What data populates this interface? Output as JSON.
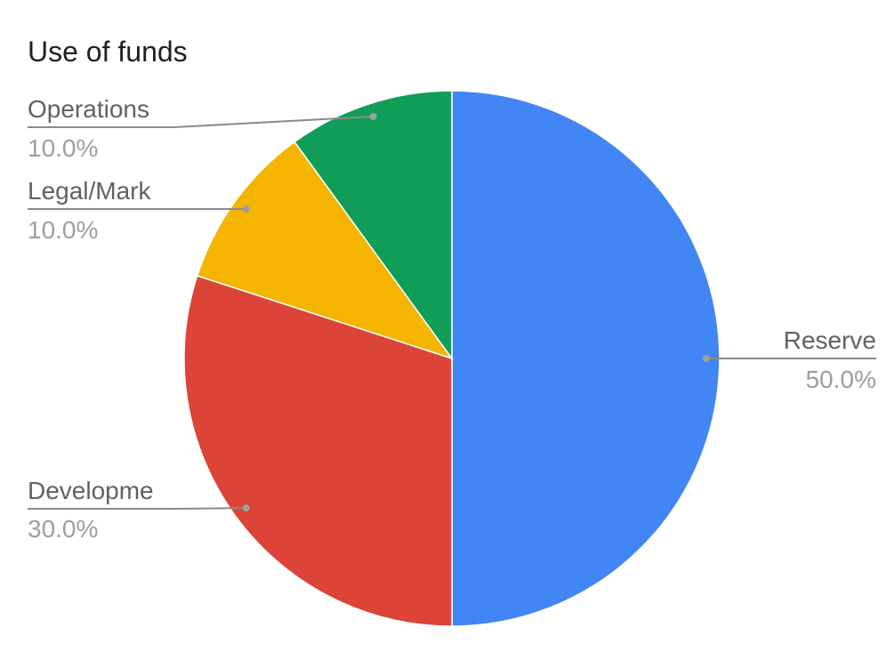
{
  "chart_data": {
    "type": "pie",
    "title": "Use of funds",
    "slices": [
      {
        "label": "Reserve",
        "value": 50.0,
        "percent_label": "50.0%",
        "color": "#4285f4",
        "label_side": "right"
      },
      {
        "label": "Developme",
        "value": 30.0,
        "percent_label": "30.0%",
        "color": "#db4437",
        "label_side": "left"
      },
      {
        "label": "Legal/Mark",
        "value": 10.0,
        "percent_label": "10.0%",
        "color": "#f4b400",
        "label_side": "left"
      },
      {
        "label": "Operations",
        "value": 10.0,
        "percent_label": "10.0%",
        "color": "#0f9d58",
        "label_side": "left"
      }
    ],
    "start": "top",
    "direction": "clockwise",
    "legend": "labels with leader lines"
  }
}
